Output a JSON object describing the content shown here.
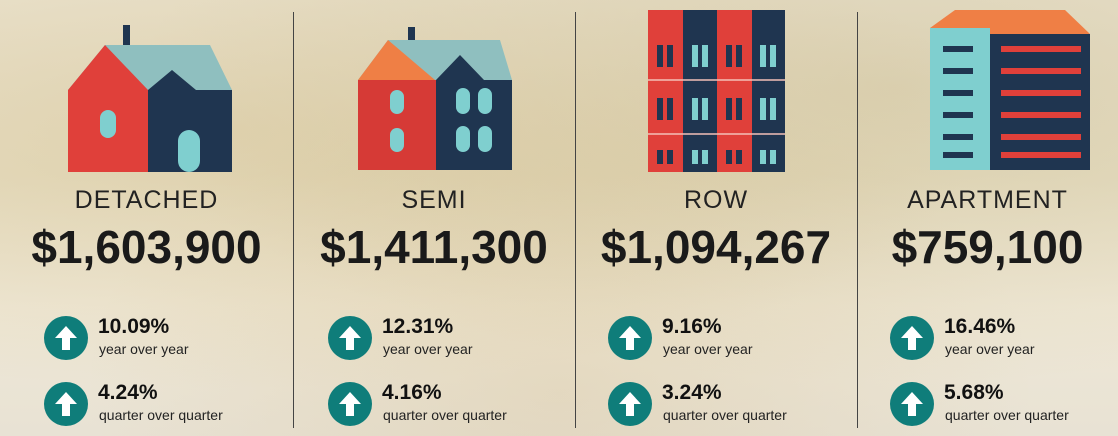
{
  "cards": [
    {
      "label": "DETACHED",
      "price": "$1,603,900",
      "yoy": "10.09%",
      "yoy_label": "year over year",
      "qoq": "4.24%",
      "qoq_label": "quarter over quarter"
    },
    {
      "label": "SEMI",
      "price": "$1,411,300",
      "yoy": "12.31%",
      "yoy_label": "year over year",
      "qoq": "4.16%",
      "qoq_label": "quarter over quarter"
    },
    {
      "label": "ROW",
      "price": "$1,094,267",
      "yoy": "9.16%",
      "yoy_label": "year over year",
      "qoq": "3.24%",
      "qoq_label": "quarter over quarter"
    },
    {
      "label": "APARTMENT",
      "price": "$759,100",
      "yoy": "16.46%",
      "yoy_label": "year over year",
      "qoq": "5.68%",
      "qoq_label": "quarter over quarter"
    }
  ]
}
